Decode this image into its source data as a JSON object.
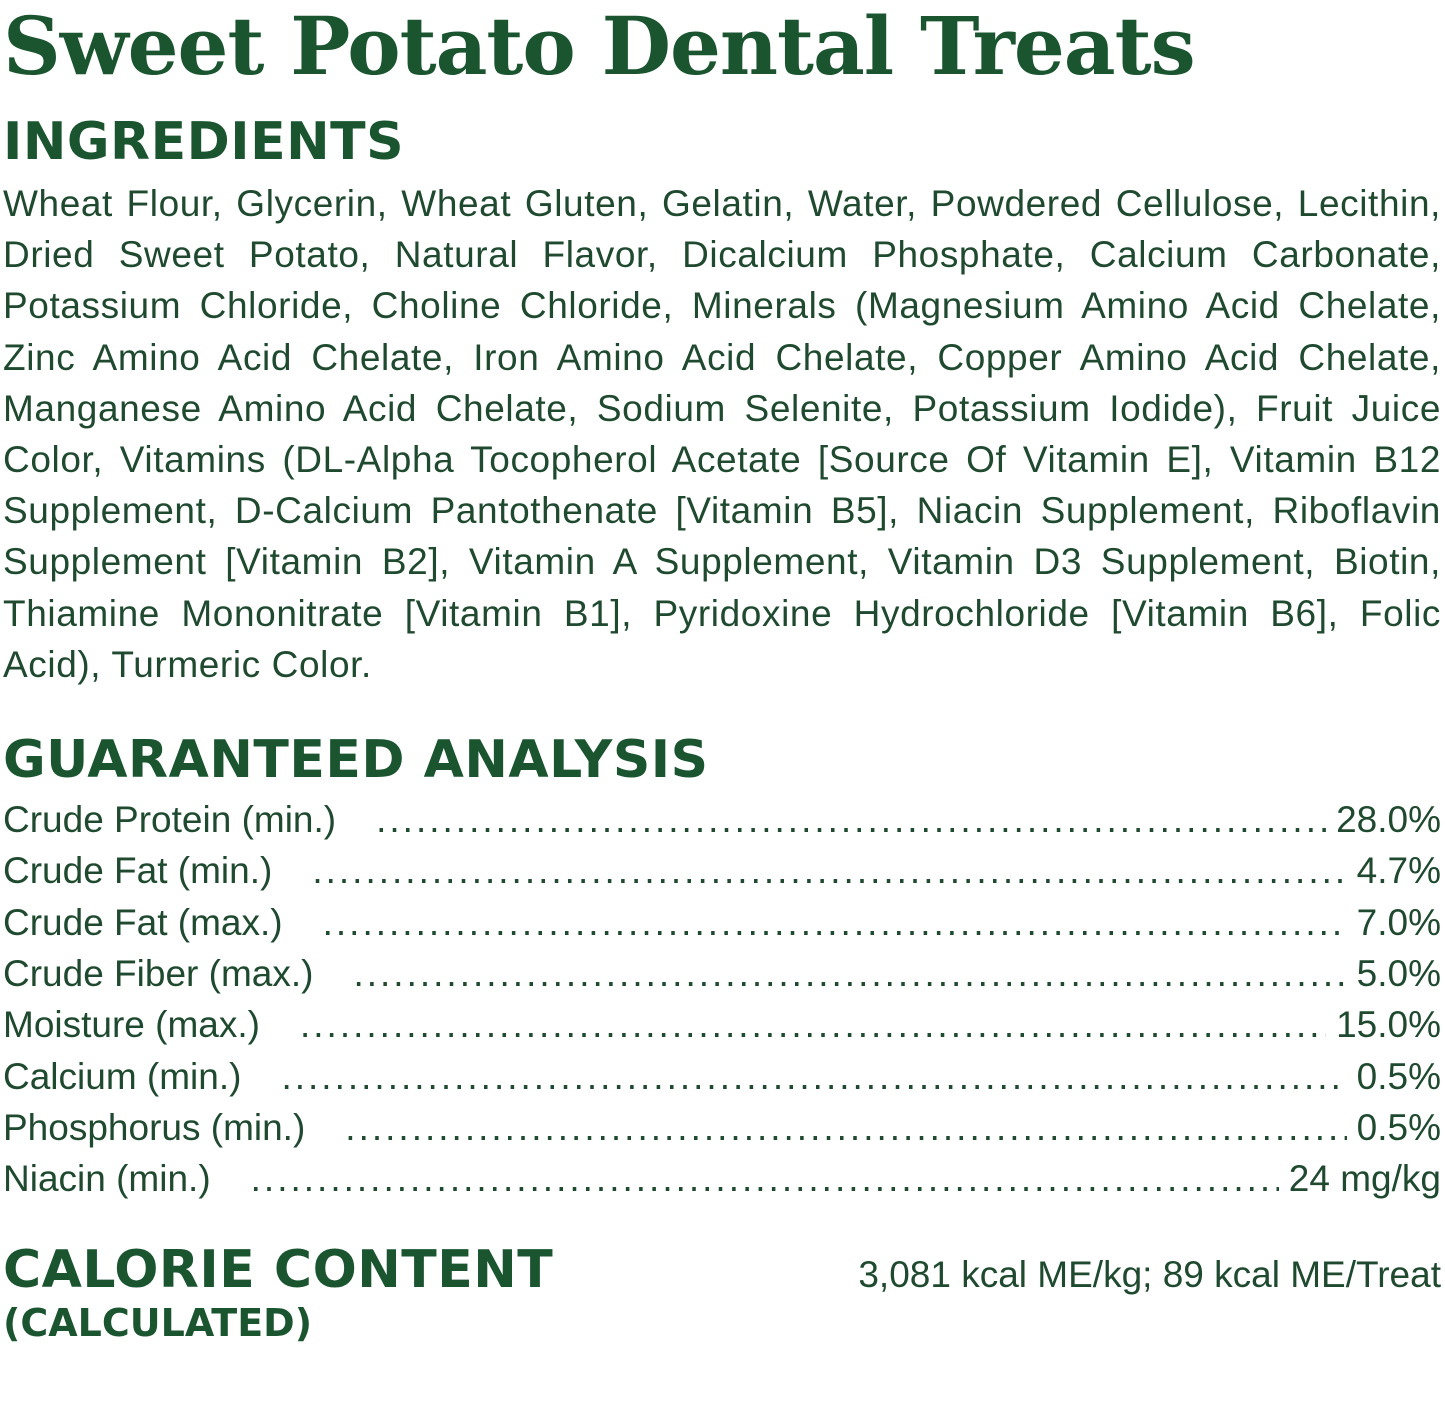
{
  "title": "Sweet Potato Dental Treats",
  "ingredients": {
    "heading": "INGREDIENTS",
    "text": "Wheat Flour, Glycerin, Wheat Gluten, Gelatin, Water, Powdered Cellulose, Lecithin, Dried Sweet Potato, Natural Flavor, Dicalcium Phosphate, Calcium Carbonate, Potassium Chloride, Choline Chloride, Minerals (Magnesium Amino Acid Chelate, Zinc Amino Acid Chelate, Iron Amino Acid Chelate, Copper Amino Acid Chelate, Manganese Amino Acid Chelate, Sodium Selenite, Potassium Iodide), Fruit Juice Color, Vitamins (DL-Alpha Tocopherol Acetate [Source Of Vitamin E], Vitamin B12 Supplement, D-Calcium Pantothenate [Vitamin B5], Niacin Supplement, Riboflavin Supplement [Vitamin B2], Vitamin A Supplement, Vitamin D3 Supplement, Biotin, Thiamine Mononitrate [Vitamin B1], Pyridoxine Hydrochloride [Vitamin B6], Folic Acid), Turmeric Color."
  },
  "analysis": {
    "heading": "GUARANTEED ANALYSIS",
    "rows": [
      {
        "label": "Crude Protein (min.)",
        "value": "28.0%"
      },
      {
        "label": "Crude Fat (min.)",
        "value": "4.7%"
      },
      {
        "label": "Crude Fat (max.)",
        "value": "7.0%"
      },
      {
        "label": "Crude Fiber (max.)",
        "value": "5.0%"
      },
      {
        "label": "Moisture (max.)",
        "value": "15.0%"
      },
      {
        "label": "Calcium (min.)",
        "value": "0.5%"
      },
      {
        "label": "Phosphorus (min.)",
        "value": "0.5%"
      },
      {
        "label": "Niacin (min.)",
        "value": "24 mg/kg"
      }
    ]
  },
  "calorie": {
    "heading": "CALORIE CONTENT",
    "subheading": "(CALCULATED)",
    "value": "3,081 kcal ME/kg; 89 kcal ME/Treat"
  },
  "colors": {
    "heading": "#1a5530",
    "body": "#1f4a2f",
    "background": "#ffffff"
  }
}
